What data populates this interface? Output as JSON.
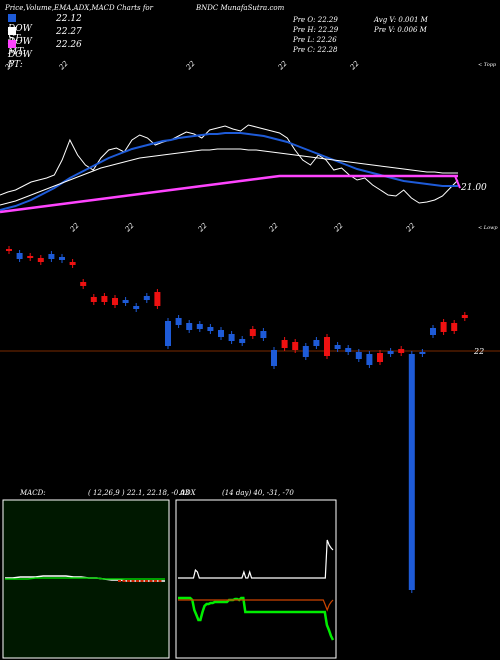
{
  "header": {
    "title": "Price,Volume,EMA,ADX,MACD Charts for",
    "site": "BNDC MunafaSutra.com"
  },
  "legend": [
    {
      "label": "DOW ST:",
      "value": "22.12",
      "color": "#1e5bd8"
    },
    {
      "label": "DOW MT:",
      "value": "22.27",
      "color": "#ffffff"
    },
    {
      "label": "DOW PT:",
      "value": "22.26",
      "color": "#ff44ff"
    }
  ],
  "prev": {
    "o": "Pre  O: 22.29",
    "h": "Pre  H: 22.29",
    "l": "Pre  L: 22.26",
    "c": "Pre  C: 22.28",
    "avg_v": "Avg V: 0.001 M",
    "pre_v": "Pre  V: 0.006  M"
  },
  "labels": {
    "toppr": "< Topp",
    "lowpr": "< Lowp",
    "right_price": "21.00",
    "candle_price": "22",
    "top_ticks": [
      "22",
      "22",
      "22",
      "22",
      "22"
    ],
    "mid_ticks": [
      "22",
      "22",
      "22",
      "22",
      "22",
      "22"
    ]
  },
  "macd_panel": {
    "label": "MACD:",
    "params": "( 12,26,9 ) 22.1, 22.18, -0.03"
  },
  "adx_panel": {
    "label": "ADX",
    "params": "(14  day) 40,  -31,  -70"
  },
  "chart_data": [
    {
      "type": "line",
      "name": "price-ema-panel",
      "x": [
        0,
        1,
        2,
        3,
        4,
        5,
        6,
        7,
        8,
        9,
        10,
        11,
        12,
        13,
        14,
        15,
        16,
        17,
        18,
        19,
        20,
        21,
        22,
        23,
        24,
        25,
        26,
        27,
        28,
        29,
        30,
        31,
        32,
        33,
        34,
        35,
        36,
        37,
        38,
        39,
        40,
        41,
        42,
        43,
        44,
        45,
        46,
        47,
        48,
        49,
        50,
        51,
        52,
        53,
        54,
        55,
        56,
        57,
        58,
        59
      ],
      "series": [
        {
          "values": [
            195,
            192,
            190,
            186,
            182,
            180,
            178,
            175,
            160,
            140,
            155,
            165,
            170,
            158,
            150,
            148,
            152,
            140,
            135,
            138,
            145,
            142,
            140,
            136,
            132,
            134,
            138,
            130,
            128,
            126,
            129,
            131,
            125,
            127,
            129,
            131,
            133,
            138,
            150,
            160,
            165,
            155,
            160,
            170,
            168,
            175,
            180,
            178,
            185,
            190,
            195,
            196,
            190,
            198,
            203,
            202,
            200,
            196,
            188,
            180
          ],
          "color": "#ffffff"
        },
        {
          "values": [
            210,
            208,
            206,
            203,
            200,
            196,
            192,
            188,
            183,
            178,
            174,
            170,
            166,
            162,
            158,
            155,
            152,
            149,
            147,
            145,
            143,
            141,
            140,
            138,
            137,
            136,
            135,
            134,
            134,
            133,
            133,
            133,
            134,
            135,
            136,
            138,
            140,
            142,
            145,
            148,
            151,
            154,
            157,
            160,
            163,
            166,
            169,
            171,
            173,
            175,
            177,
            179,
            181,
            182,
            183,
            184,
            185,
            186,
            186,
            186
          ],
          "color": "#1e5bd8"
        },
        {
          "values": [
            205,
            203,
            201,
            198,
            195,
            192,
            189,
            186,
            183,
            180,
            177,
            174,
            171,
            168,
            166,
            164,
            162,
            160,
            158,
            157,
            156,
            155,
            154,
            153,
            152,
            151,
            150,
            150,
            149,
            149,
            149,
            149,
            150,
            150,
            151,
            152,
            153,
            154,
            155,
            156,
            157,
            158,
            159,
            160,
            161,
            162,
            163,
            164,
            165,
            166,
            167,
            168,
            169,
            170,
            171,
            172,
            172,
            173,
            173,
            173
          ],
          "color": "#ffffff"
        },
        {
          "values": [
            212,
            211,
            210,
            209,
            208,
            207,
            206,
            205,
            204,
            203,
            202,
            201,
            200,
            199,
            198,
            197,
            196,
            195,
            194,
            193,
            192,
            191,
            190,
            189,
            188,
            187,
            186,
            185,
            184,
            183,
            182,
            181,
            180,
            179,
            178,
            177,
            176,
            176,
            176,
            176,
            176,
            176,
            176,
            176,
            176,
            176,
            176,
            176,
            176,
            176,
            176,
            176,
            176,
            176,
            176,
            176,
            176,
            176,
            176,
            176
          ],
          "color": "#ff44ff"
        }
      ],
      "ylabel": "",
      "ref": 21.0
    },
    {
      "type": "bar",
      "name": "candles",
      "candles": [
        {
          "o": 249,
          "c": 251,
          "up": false
        },
        {
          "o": 253,
          "c": 259,
          "up": true
        },
        {
          "o": 256,
          "c": 258,
          "up": false
        },
        {
          "o": 258,
          "c": 262,
          "up": false
        },
        {
          "o": 254,
          "c": 259,
          "up": true
        },
        {
          "o": 257,
          "c": 260,
          "up": true
        },
        {
          "o": 262,
          "c": 265,
          "up": false
        },
        {
          "o": 282,
          "c": 286,
          "up": false
        },
        {
          "o": 297,
          "c": 302,
          "up": false
        },
        {
          "o": 296,
          "c": 302,
          "up": false
        },
        {
          "o": 298,
          "c": 305,
          "up": false
        },
        {
          "o": 300,
          "c": 303,
          "up": true
        },
        {
          "o": 306,
          "c": 309,
          "up": true
        },
        {
          "o": 296,
          "c": 300,
          "up": true
        },
        {
          "o": 292,
          "c": 306,
          "up": false
        },
        {
          "o": 321,
          "c": 346,
          "up": true
        },
        {
          "o": 318,
          "c": 325,
          "up": true
        },
        {
          "o": 323,
          "c": 330,
          "up": true
        },
        {
          "o": 324,
          "c": 329,
          "up": true
        },
        {
          "o": 327,
          "c": 331,
          "up": true
        },
        {
          "o": 330,
          "c": 337,
          "up": true
        },
        {
          "o": 334,
          "c": 341,
          "up": true
        },
        {
          "o": 339,
          "c": 343,
          "up": true
        },
        {
          "o": 329,
          "c": 336,
          "up": false
        },
        {
          "o": 331,
          "c": 338,
          "up": true
        },
        {
          "o": 350,
          "c": 366,
          "up": true
        },
        {
          "o": 340,
          "c": 348,
          "up": false
        },
        {
          "o": 342,
          "c": 350,
          "up": false
        },
        {
          "o": 346,
          "c": 357,
          "up": true
        },
        {
          "o": 340,
          "c": 346,
          "up": true
        },
        {
          "o": 337,
          "c": 356,
          "up": false
        },
        {
          "o": 345,
          "c": 349,
          "up": true
        },
        {
          "o": 348,
          "c": 352,
          "up": true
        },
        {
          "o": 352,
          "c": 359,
          "up": true
        },
        {
          "o": 354,
          "c": 365,
          "up": true
        },
        {
          "o": 353,
          "c": 362,
          "up": false
        },
        {
          "o": 351,
          "c": 354,
          "up": true
        },
        {
          "o": 349,
          "c": 353,
          "up": false
        },
        {
          "o": 354,
          "c": 590,
          "up": true
        },
        {
          "o": 352,
          "c": 354,
          "up": true
        },
        {
          "o": 328,
          "c": 335,
          "up": true
        },
        {
          "o": 322,
          "c": 332,
          "up": false
        },
        {
          "o": 323,
          "c": 331,
          "up": false
        },
        {
          "o": 315,
          "c": 318,
          "up": false
        }
      ]
    },
    {
      "type": "line",
      "name": "macd",
      "series": [
        {
          "values": [
            578,
            578,
            577,
            577,
            577,
            576,
            576,
            576,
            576,
            577,
            577,
            578,
            578,
            579,
            580,
            580,
            581,
            581,
            581,
            581,
            581,
            581
          ],
          "color": "#ffffff"
        },
        {
          "values": [
            579,
            579,
            579,
            579,
            578,
            578,
            578,
            578,
            578,
            578,
            578,
            578,
            578,
            579,
            579,
            579,
            579,
            579,
            579,
            579,
            579,
            579
          ],
          "color": "#00cc00"
        }
      ]
    },
    {
      "type": "line",
      "name": "adx",
      "series": [
        {
          "values": [
            578,
            578,
            578,
            578,
            578,
            578,
            578,
            578,
            578,
            570,
            572,
            578,
            578,
            578,
            578,
            578,
            578,
            578,
            578,
            578,
            578,
            578,
            578,
            578,
            578,
            578,
            578,
            578,
            578,
            578,
            578,
            578,
            578,
            578,
            572,
            578,
            578,
            572,
            578,
            578,
            578,
            578,
            578,
            578,
            578,
            578,
            578,
            578,
            578,
            578,
            578,
            578,
            578,
            578,
            578,
            578,
            578,
            578,
            578,
            578,
            578,
            578,
            578,
            578,
            578,
            578,
            578,
            578,
            578,
            578,
            578,
            578,
            578,
            578,
            578,
            578,
            578,
            540,
            545,
            548,
            550
          ],
          "color": "#ffffff"
        },
        {
          "values": [
            598,
            598,
            598,
            598,
            598,
            598,
            598,
            600,
            610,
            615,
            620,
            620,
            612,
            606,
            604,
            604,
            603,
            603,
            602,
            602,
            602,
            602,
            602,
            602,
            602,
            600,
            600,
            600,
            599,
            599,
            600,
            598,
            598,
            612,
            612,
            612,
            612,
            612,
            612,
            612,
            612,
            612,
            612,
            612,
            612,
            612,
            612,
            612,
            612,
            612,
            612,
            612,
            612,
            612,
            612,
            612,
            612,
            612,
            612,
            612,
            612,
            612,
            612,
            612,
            612,
            612,
            612,
            612,
            612,
            612,
            612,
            612,
            612,
            625,
            630,
            636,
            640
          ],
          "color": "#00ee00"
        },
        {
          "values": [
            600,
            600,
            600,
            600,
            600,
            600,
            600,
            600,
            600,
            600,
            600,
            600,
            600,
            600,
            600,
            600,
            600,
            600,
            600,
            600,
            600,
            600,
            600,
            600,
            600,
            600,
            600,
            600,
            600,
            600,
            600,
            600,
            600,
            600,
            600,
            600,
            600,
            600,
            600,
            600,
            600,
            600,
            600,
            600,
            600,
            600,
            600,
            600,
            600,
            600,
            600,
            600,
            600,
            600,
            600,
            600,
            600,
            600,
            600,
            600,
            600,
            600,
            600,
            600,
            600,
            600,
            600,
            600,
            600,
            600,
            600,
            600,
            600,
            600,
            600,
            600,
            605,
            610,
            605,
            602,
            600
          ],
          "color": "#cc4400"
        }
      ]
    }
  ]
}
